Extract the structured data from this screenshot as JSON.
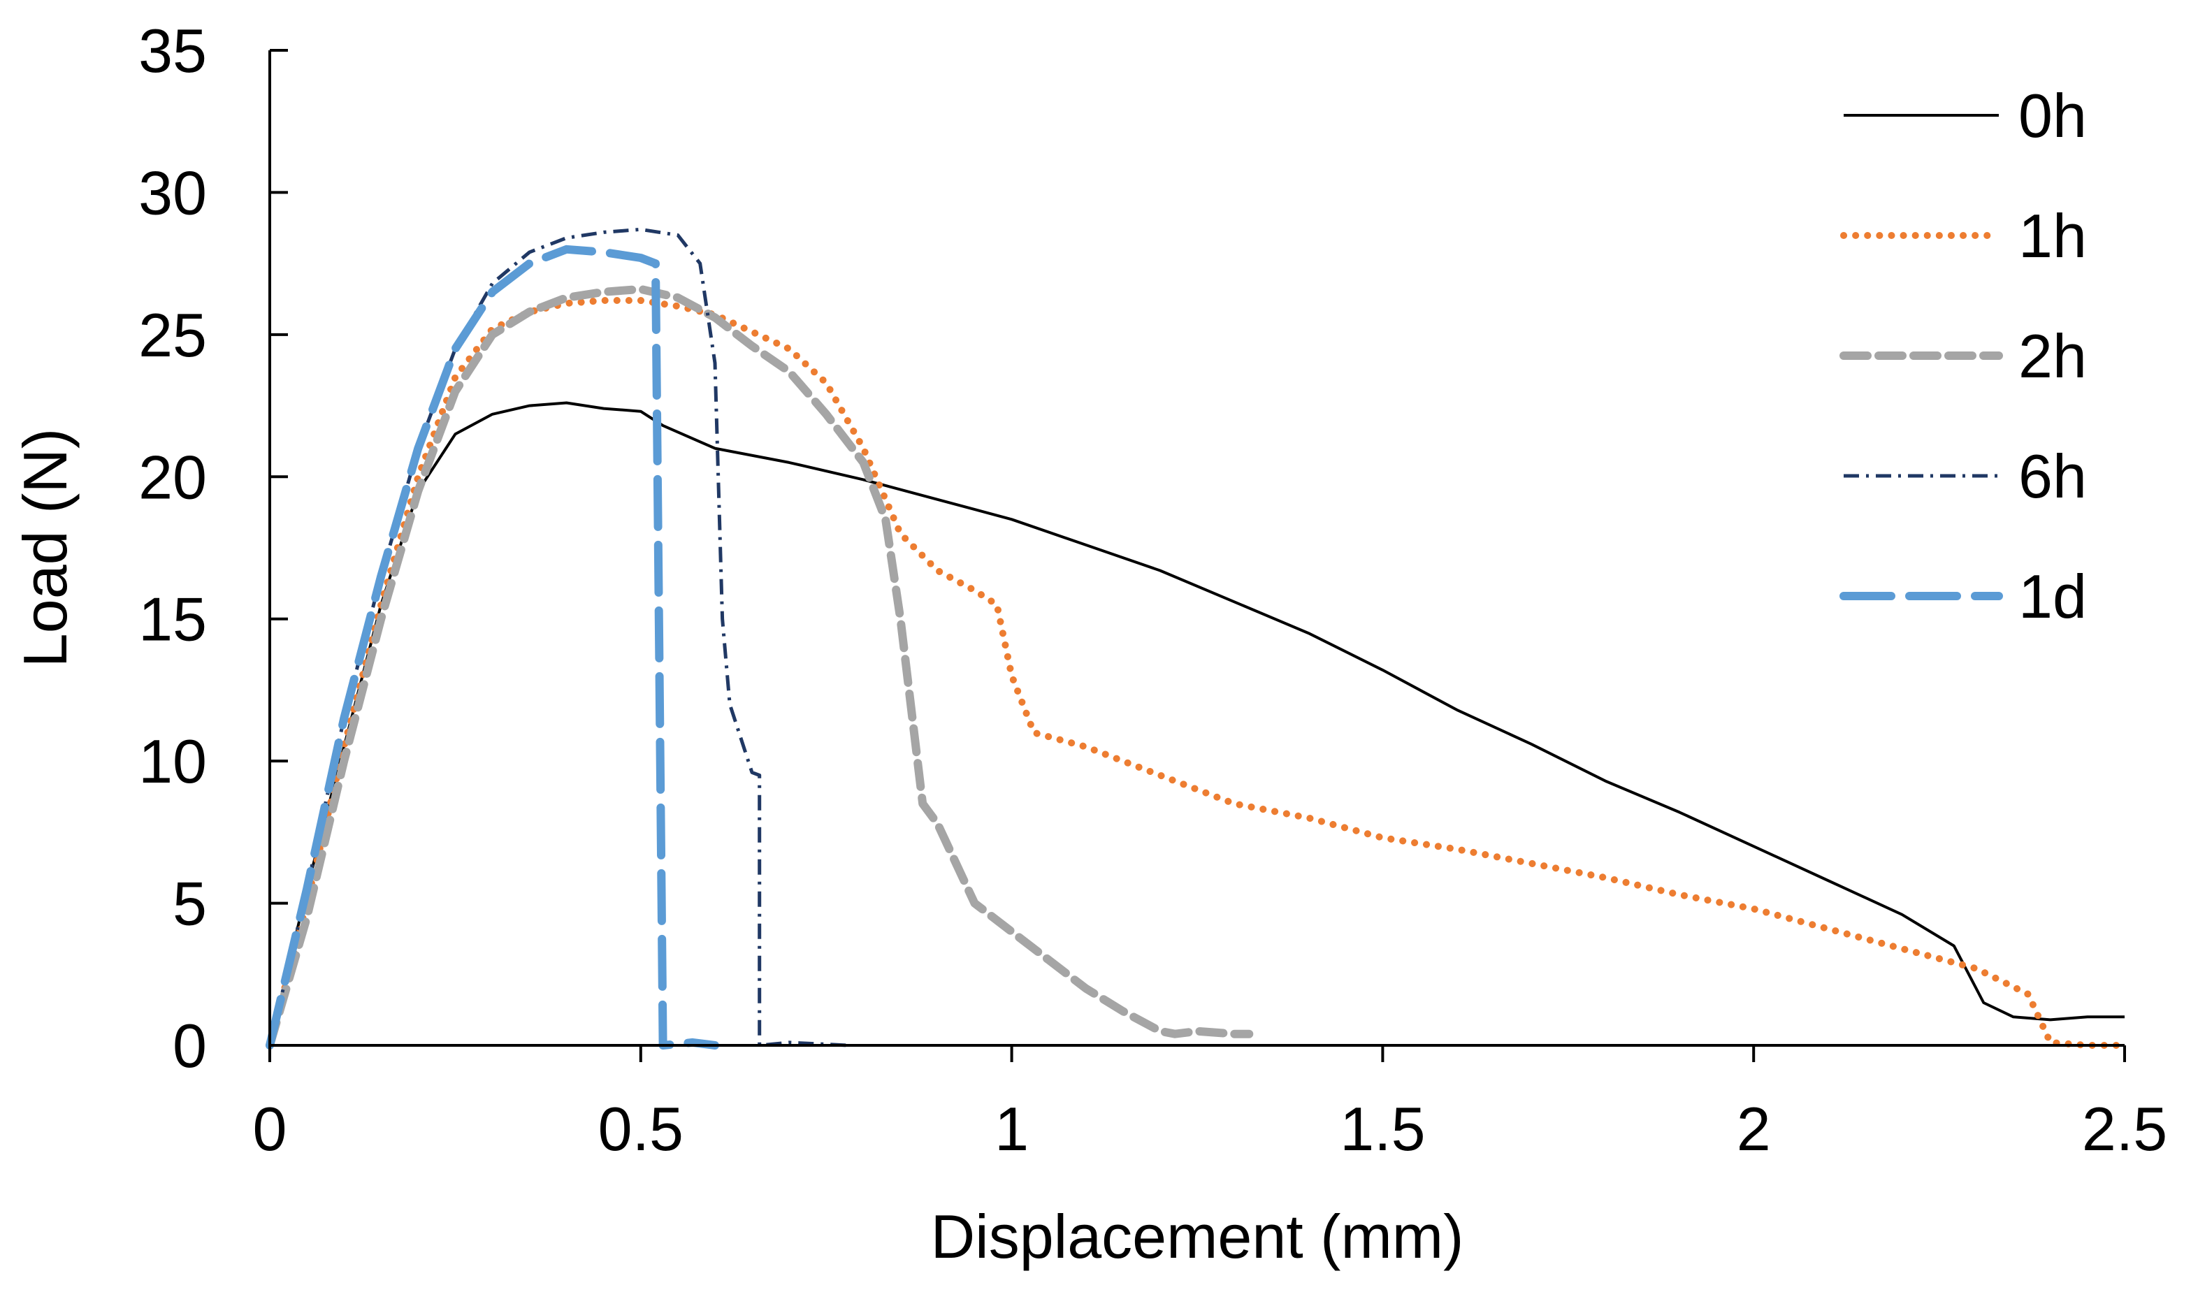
{
  "chart_data": {
    "type": "line",
    "title": "",
    "xlabel": "Displacement (mm)",
    "ylabel": "Load (N)",
    "xlim": [
      0,
      2.5
    ],
    "ylim": [
      0,
      35
    ],
    "xticks": [
      0,
      0.5,
      1,
      1.5,
      2,
      2.5
    ],
    "xtick_labels": [
      "0",
      "0.5",
      "1",
      "1.5",
      "2",
      "2.5"
    ],
    "yticks": [
      0,
      5,
      10,
      15,
      20,
      25,
      30,
      35
    ],
    "ytick_labels": [
      "0",
      "5",
      "10",
      "15",
      "20",
      "25",
      "30",
      "35"
    ],
    "grid": false,
    "legend_position": "top-right",
    "series": [
      {
        "name": "0h",
        "color": "#000000",
        "style": "solid",
        "x": [
          0,
          0.05,
          0.1,
          0.15,
          0.2,
          0.25,
          0.3,
          0.35,
          0.4,
          0.45,
          0.5,
          0.53,
          0.6,
          0.7,
          0.8,
          0.9,
          1.0,
          1.1,
          1.2,
          1.3,
          1.4,
          1.5,
          1.6,
          1.7,
          1.8,
          1.9,
          2.0,
          2.1,
          2.2,
          2.27,
          2.31,
          2.35,
          2.4,
          2.45,
          2.5
        ],
        "y": [
          0,
          5.5,
          10.5,
          15.5,
          19.5,
          21.5,
          22.2,
          22.5,
          22.6,
          22.4,
          22.3,
          21.8,
          21.0,
          20.5,
          19.9,
          19.2,
          18.5,
          17.6,
          16.7,
          15.6,
          14.5,
          13.2,
          11.8,
          10.6,
          9.3,
          8.2,
          7.0,
          5.8,
          4.6,
          3.5,
          1.5,
          1.0,
          0.9,
          1.0,
          1.0
        ]
      },
      {
        "name": "1h",
        "color": "#ED7D31",
        "style": "dotted",
        "x": [
          0,
          0.05,
          0.1,
          0.15,
          0.2,
          0.25,
          0.3,
          0.35,
          0.4,
          0.45,
          0.5,
          0.55,
          0.6,
          0.7,
          0.75,
          0.8,
          0.85,
          0.9,
          0.95,
          0.98,
          1.0,
          1.03,
          1.1,
          1.2,
          1.3,
          1.4,
          1.5,
          1.6,
          1.7,
          1.8,
          1.9,
          2.0,
          2.1,
          2.2,
          2.3,
          2.37,
          2.4,
          2.45,
          2.5
        ],
        "y": [
          0,
          5,
          10.5,
          15.5,
          20,
          23.5,
          25.2,
          25.8,
          26.1,
          26.2,
          26.2,
          26.0,
          25.7,
          24.5,
          23.3,
          21.0,
          18.0,
          16.7,
          16.0,
          15.5,
          13.0,
          11.0,
          10.5,
          9.5,
          8.5,
          8.0,
          7.3,
          6.9,
          6.4,
          5.9,
          5.3,
          4.8,
          4.1,
          3.4,
          2.7,
          1.8,
          0.1,
          0.0,
          0.0
        ]
      },
      {
        "name": "2h",
        "color": "#A5A5A5",
        "style": "dashed",
        "x": [
          0,
          0.05,
          0.1,
          0.15,
          0.2,
          0.25,
          0.3,
          0.35,
          0.4,
          0.45,
          0.5,
          0.55,
          0.6,
          0.65,
          0.7,
          0.75,
          0.8,
          0.83,
          0.85,
          0.88,
          0.9,
          0.95,
          1.0,
          1.05,
          1.1,
          1.15,
          1.2,
          1.22,
          1.25,
          1.3,
          1.32
        ],
        "y": [
          0,
          4.5,
          10,
          15,
          19.5,
          23,
          25,
          25.8,
          26.3,
          26.5,
          26.6,
          26.3,
          25.6,
          24.6,
          23.7,
          22.2,
          20.5,
          18.5,
          15.0,
          8.5,
          7.8,
          5.0,
          4.0,
          3.0,
          2.0,
          1.2,
          0.5,
          0.4,
          0.5,
          0.4,
          0.4
        ]
      },
      {
        "name": "6h",
        "color": "#203864",
        "style": "dashdot",
        "x": [
          0,
          0.05,
          0.1,
          0.15,
          0.2,
          0.25,
          0.3,
          0.35,
          0.4,
          0.45,
          0.5,
          0.55,
          0.58,
          0.6,
          0.61,
          0.62,
          0.65,
          0.66,
          0.66,
          0.7,
          0.78
        ],
        "y": [
          0,
          5.5,
          11.5,
          16.5,
          21,
          24.5,
          26.8,
          27.9,
          28.4,
          28.6,
          28.7,
          28.5,
          27.5,
          24.0,
          15.0,
          12.0,
          9.6,
          9.5,
          0.0,
          0.1,
          0.0
        ]
      },
      {
        "name": "1d",
        "color": "#5B9BD5",
        "style": "longdash",
        "x": [
          0,
          0.05,
          0.1,
          0.15,
          0.2,
          0.25,
          0.3,
          0.35,
          0.4,
          0.45,
          0.5,
          0.52,
          0.53,
          0.57,
          0.6
        ],
        "y": [
          0,
          5.5,
          11.5,
          16.5,
          21,
          24.5,
          26.5,
          27.5,
          28.0,
          27.9,
          27.7,
          27.5,
          0.0,
          0.1,
          0.0
        ]
      }
    ]
  }
}
